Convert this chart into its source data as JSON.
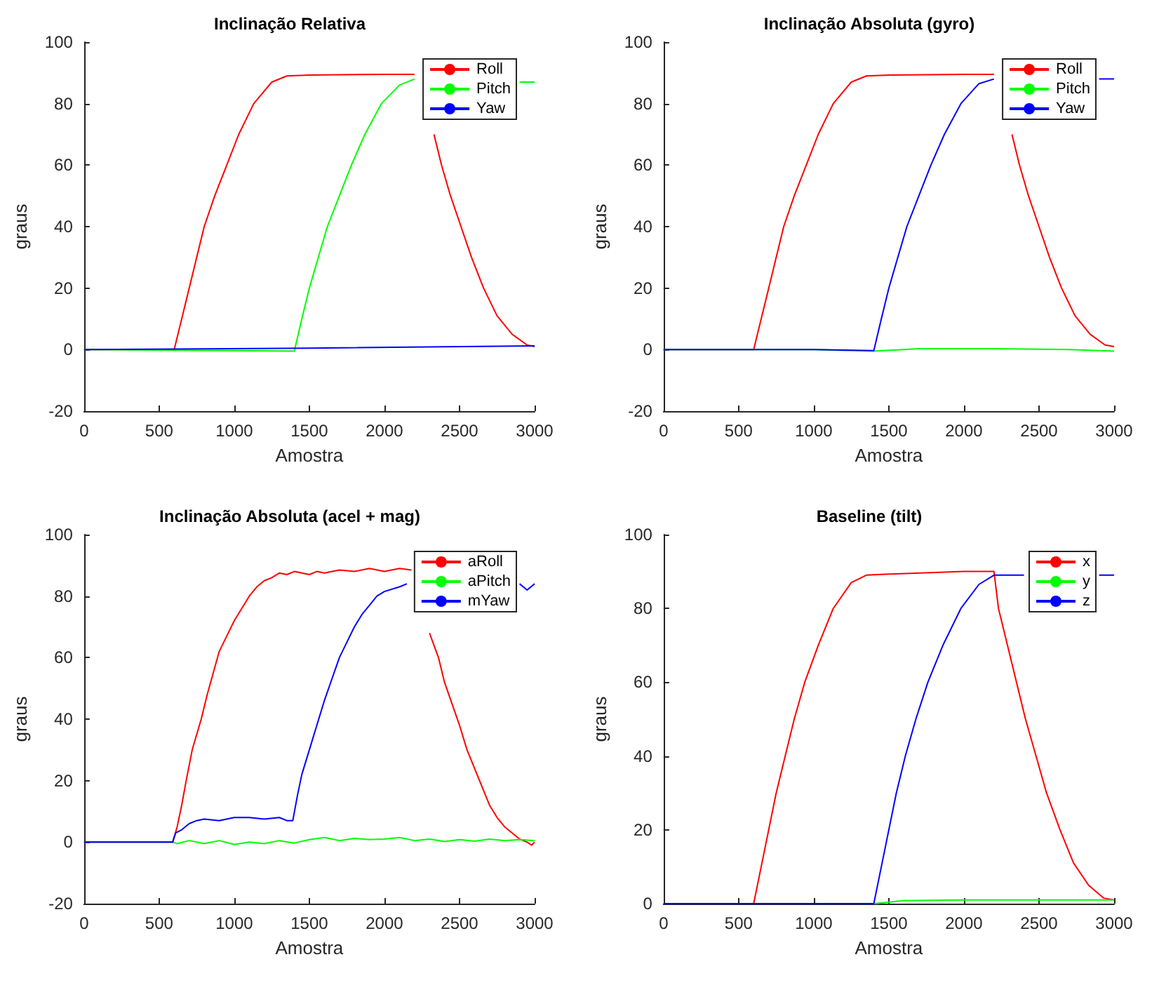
{
  "chart_data": [
    {
      "type": "line",
      "title": "Inclinação Relativa",
      "xlabel": "Amostra",
      "ylabel": "graus",
      "xlim": [
        0,
        3000
      ],
      "xticks": [
        0,
        500,
        1000,
        1500,
        2000,
        2500,
        3000
      ],
      "ylim": [
        -20,
        100
      ],
      "yticks": [
        -20,
        0,
        20,
        40,
        60,
        80,
        100
      ],
      "grid": false,
      "legend": "top right",
      "marker": "none",
      "line_style": "solid",
      "series": [
        {
          "name": "Roll",
          "color": "#ff0000",
          "x": [
            0,
            600,
            650,
            700,
            750,
            800,
            870,
            950,
            1030,
            1130,
            1250,
            1350,
            1500,
            2000,
            2200,
            2280,
            2330,
            2380,
            2440,
            2510,
            2580,
            2660,
            2750,
            2850,
            2950,
            3000
          ],
          "values": [
            0,
            0,
            10,
            20,
            30,
            40,
            50,
            60,
            70,
            80,
            87,
            89,
            89.3,
            89.5,
            89.5,
            null,
            70,
            60,
            50,
            40,
            30,
            20,
            11,
            5,
            1.5,
            1
          ]
        },
        {
          "name": "Pitch",
          "color": "#00ff00",
          "x": [
            0,
            1000,
            1400,
            1450,
            1500,
            1560,
            1620,
            1700,
            1780,
            1870,
            1980,
            2100,
            2200,
            2500,
            2900,
            3000
          ],
          "values": [
            0,
            -0.3,
            -0.5,
            10,
            20,
            30,
            40,
            50,
            60,
            70,
            80,
            86,
            88,
            null,
            87,
            87
          ]
        },
        {
          "name": "Yaw",
          "color": "#0000ff",
          "x": [
            0,
            1500,
            3000
          ],
          "values": [
            0,
            0.5,
            1.2
          ]
        }
      ]
    },
    {
      "type": "line",
      "title": "Inclinação Absoluta (gyro)",
      "xlabel": "Amostra",
      "ylabel": "graus",
      "xlim": [
        0,
        3000
      ],
      "xticks": [
        0,
        500,
        1000,
        1500,
        2000,
        2500,
        3000
      ],
      "ylim": [
        -20,
        100
      ],
      "yticks": [
        -20,
        0,
        20,
        40,
        60,
        80,
        100
      ],
      "grid": false,
      "legend": "top right",
      "marker": "none",
      "line_style": "solid",
      "series": [
        {
          "name": "Roll",
          "color": "#ff0000",
          "x": [
            0,
            600,
            650,
            700,
            750,
            800,
            870,
            950,
            1030,
            1130,
            1250,
            1350,
            1500,
            2000,
            2200,
            2270,
            2320,
            2370,
            2430,
            2500,
            2570,
            2650,
            2740,
            2840,
            2940,
            3000
          ],
          "values": [
            0,
            0,
            10,
            20,
            30,
            40,
            50,
            60,
            70,
            80,
            87,
            89,
            89.3,
            89.5,
            89.5,
            null,
            70,
            60,
            50,
            40,
            30,
            20,
            11,
            5,
            1.5,
            1
          ]
        },
        {
          "name": "Pitch",
          "color": "#00ff00",
          "x": [
            0,
            1000,
            1400,
            1700,
            2200,
            2700,
            3000
          ],
          "values": [
            0,
            0,
            -0.5,
            0.3,
            0.3,
            0,
            -0.5
          ]
        },
        {
          "name": "Yaw",
          "color": "#0000ff",
          "x": [
            0,
            1000,
            1400,
            1450,
            1500,
            1560,
            1620,
            1700,
            1780,
            1870,
            1980,
            2100,
            2200,
            2500,
            2900,
            3000
          ],
          "values": [
            0,
            0,
            -0.3,
            10,
            20,
            30,
            40,
            50,
            60,
            70,
            80,
            86.5,
            88,
            null,
            88,
            88
          ]
        }
      ]
    },
    {
      "type": "line",
      "title": "Inclinação Absoluta (acel + mag)",
      "xlabel": "Amostra",
      "ylabel": "graus",
      "xlim": [
        0,
        3000
      ],
      "xticks": [
        0,
        500,
        1000,
        1500,
        2000,
        2500,
        3000
      ],
      "ylim": [
        -20,
        100
      ],
      "yticks": [
        -20,
        0,
        20,
        40,
        60,
        80,
        100
      ],
      "grid": false,
      "legend": "top right",
      "marker": "none",
      "line_style": "solid",
      "series": [
        {
          "name": "aRoll",
          "color": "#ff0000",
          "x": [
            0,
            590,
            620,
            650,
            680,
            720,
            780,
            820,
            860,
            900,
            950,
            1000,
            1050,
            1100,
            1150,
            1200,
            1250,
            1300,
            1350,
            1400,
            1500,
            1550,
            1600,
            1700,
            1800,
            1900,
            2000,
            2100,
            2180,
            2240,
            2300,
            2330,
            2360,
            2400,
            2450,
            2500,
            2550,
            2600,
            2650,
            2700,
            2750,
            2800,
            2850,
            2900,
            2950,
            2980,
            3000
          ],
          "values": [
            0,
            0,
            5,
            12,
            20,
            30,
            40,
            48,
            55,
            62,
            67,
            72,
            76,
            80,
            83,
            85,
            86,
            87.5,
            87,
            88,
            87,
            88,
            87.5,
            88.5,
            88,
            89,
            88,
            89,
            88.5,
            null,
            68,
            64,
            60,
            52,
            45,
            38,
            30,
            24,
            18,
            12,
            8,
            5,
            3,
            1,
            0,
            -1,
            0
          ]
        },
        {
          "name": "aPitch",
          "color": "#00ff00",
          "x": [
            0,
            590,
            620,
            700,
            800,
            900,
            1000,
            1100,
            1200,
            1300,
            1400,
            1500,
            1600,
            1700,
            1800,
            1900,
            2000,
            2100,
            2200,
            2300,
            2400,
            2500,
            2600,
            2700,
            2800,
            2900,
            3000
          ],
          "values": [
            0,
            0,
            -0.5,
            0.5,
            -0.5,
            0.5,
            -0.8,
            0,
            -0.5,
            0.5,
            -0.3,
            0.8,
            1.5,
            0.5,
            1.2,
            0.8,
            1,
            1.5,
            0.5,
            1,
            0.2,
            0.8,
            0.3,
            1,
            0.5,
            0.8,
            0.5
          ]
        },
        {
          "name": "mYaw",
          "color": "#0000ff",
          "x": [
            0,
            590,
            610,
            650,
            700,
            750,
            800,
            900,
            1000,
            1100,
            1200,
            1300,
            1350,
            1390,
            1420,
            1450,
            1500,
            1550,
            1600,
            1650,
            1700,
            1750,
            1800,
            1850,
            1900,
            1950,
            2000,
            2100,
            2150,
            2500,
            2900,
            2950,
            3000
          ],
          "values": [
            0,
            0,
            3,
            4,
            6,
            7,
            7.5,
            7,
            8,
            8,
            7.5,
            8,
            7,
            7,
            15,
            22,
            30,
            38,
            46,
            53,
            60,
            65,
            70,
            74,
            77,
            80,
            81.5,
            83,
            84,
            null,
            84,
            82,
            84
          ]
        }
      ]
    },
    {
      "type": "line",
      "title": "Baseline (tilt)",
      "xlabel": "Amostra",
      "ylabel": "graus",
      "xlim": [
        0,
        3000
      ],
      "xticks": [
        0,
        500,
        1000,
        1500,
        2000,
        2500,
        3000
      ],
      "ylim": [
        0,
        100
      ],
      "yticks": [
        0,
        20,
        40,
        60,
        80,
        100
      ],
      "grid": false,
      "legend": "top right",
      "marker": "none",
      "line_style": "solid",
      "series": [
        {
          "name": "x",
          "color": "#ff0000",
          "x": [
            0,
            600,
            650,
            700,
            750,
            810,
            870,
            940,
            1030,
            1130,
            1250,
            1350,
            1500,
            2000,
            2200,
            2230,
            2290,
            2350,
            2410,
            2480,
            2550,
            2640,
            2730,
            2830,
            2930,
            3000
          ],
          "values": [
            0,
            0,
            10,
            20,
            30,
            40,
            50,
            60,
            70,
            80,
            87,
            89,
            89.3,
            90,
            90,
            80,
            70,
            60,
            50,
            40,
            30,
            20,
            11,
            5,
            1.5,
            1
          ]
        },
        {
          "name": "y",
          "color": "#00ff00",
          "x": [
            0,
            1400,
            1600,
            2000,
            3000
          ],
          "values": [
            0,
            0,
            0.8,
            1,
            1
          ]
        },
        {
          "name": "z",
          "color": "#0000ff",
          "x": [
            0,
            1400,
            1450,
            1500,
            1550,
            1610,
            1680,
            1760,
            1860,
            1980,
            2100,
            2200,
            2400,
            2600,
            2900,
            3000
          ],
          "values": [
            0,
            0,
            10,
            20,
            30,
            40,
            50,
            60,
            70,
            80,
            86.5,
            89,
            89,
            null,
            89,
            89
          ]
        }
      ]
    }
  ]
}
